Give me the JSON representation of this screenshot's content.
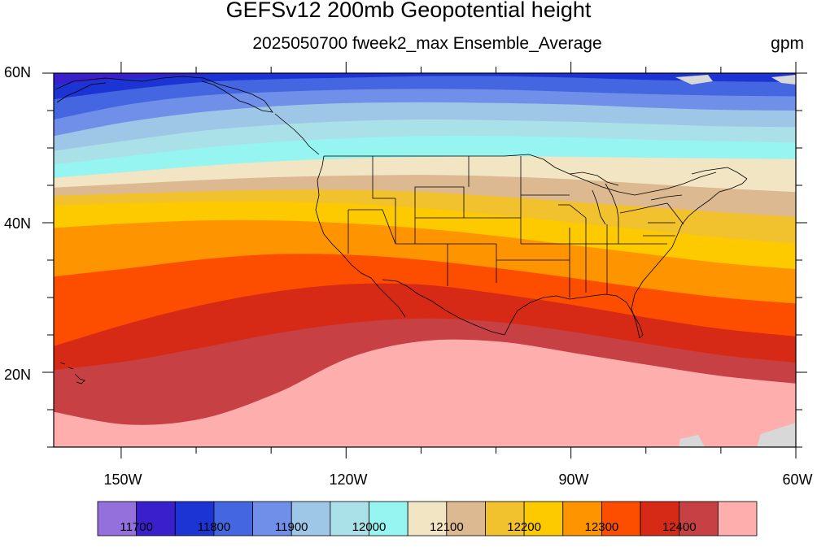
{
  "header": {
    "title": "GEFSv12 200mb Geopotential height",
    "subtitle": "2025050700 fweek2_max Ensemble_Average",
    "units": "gpm"
  },
  "axes": {
    "lat_labels": [
      "60N",
      "40N",
      "20N"
    ],
    "lat_values": [
      60,
      40,
      20
    ],
    "lon_labels": [
      "150W",
      "120W",
      "90W",
      "60W"
    ],
    "lon_values": [
      -150,
      -120,
      -90,
      -60
    ],
    "lat_range": [
      10,
      60
    ],
    "lon_range": [
      -159,
      -60
    ]
  },
  "colorbar": {
    "colors": [
      "#9370db",
      "#3a20cc",
      "#1c34d4",
      "#4466e0",
      "#6f8fe8",
      "#9ec6e6",
      "#aae0e8",
      "#96f5f0",
      "#f2e5c4",
      "#dcb990",
      "#f2c22e",
      "#fdca00",
      "#fe9500",
      "#fd4e00",
      "#d62a17",
      "#c74044",
      "#ffaeae"
    ],
    "labels": [
      "11700",
      "11800",
      "11900",
      "12000",
      "12100",
      "12200",
      "12300",
      "12400"
    ]
  },
  "field": {
    "levels": [
      11700,
      11750,
      11800,
      11850,
      11900,
      11950,
      12000,
      12050,
      12100,
      12150,
      12200,
      12250,
      12300,
      12350,
      12400,
      12450
    ],
    "contours": [
      {
        "level": 11750,
        "lats": [
          58.5,
          59.3,
          59.8,
          60.2,
          60.4,
          60.5,
          60.5,
          60.5,
          60.5,
          60.5,
          60.5
        ]
      },
      {
        "level": 11800,
        "lats": [
          56.5,
          57.8,
          58.8,
          59.2,
          59.4,
          59.6,
          59.6,
          59.4,
          59.1,
          58.9,
          58.8
        ]
      },
      {
        "level": 11850,
        "lats": [
          53.8,
          55.8,
          57.0,
          57.5,
          57.8,
          57.9,
          57.8,
          57.5,
          57.2,
          57.0,
          56.9
        ]
      },
      {
        "level": 11900,
        "lats": [
          51.6,
          53.5,
          54.8,
          55.6,
          56.0,
          56.1,
          56.0,
          55.8,
          55.4,
          55.1,
          55.0
        ]
      },
      {
        "level": 11950,
        "lats": [
          49.6,
          51.0,
          52.3,
          53.1,
          53.6,
          53.8,
          53.7,
          53.5,
          53.2,
          52.9,
          52.8
        ]
      },
      {
        "level": 12000,
        "lats": [
          47.8,
          48.9,
          50.0,
          50.8,
          51.3,
          51.6,
          51.6,
          51.4,
          51.1,
          50.9,
          50.7
        ]
      },
      {
        "level": 12050,
        "lats": [
          46.0,
          46.8,
          47.6,
          48.2,
          48.6,
          48.8,
          48.9,
          48.8,
          48.7,
          48.6,
          48.5
        ]
      },
      {
        "level": 12100,
        "lats": [
          44.7,
          45.2,
          45.7,
          46.1,
          46.3,
          46.4,
          46.2,
          45.8,
          45.2,
          44.6,
          44.1
        ]
      },
      {
        "level": 12150,
        "lats": [
          43.6,
          43.9,
          44.2,
          44.4,
          44.4,
          44.1,
          43.5,
          42.8,
          42.1,
          41.4,
          40.8
        ]
      },
      {
        "level": 12200,
        "lats": [
          42.3,
          42.6,
          42.8,
          42.8,
          42.5,
          41.9,
          41.0,
          40.0,
          39.0,
          38.0,
          37.2
        ]
      },
      {
        "level": 12250,
        "lats": [
          39.3,
          39.9,
          40.3,
          40.3,
          39.9,
          39.2,
          38.2,
          37.0,
          35.8,
          34.6,
          33.8
        ]
      },
      {
        "level": 12300,
        "lats": [
          32.8,
          33.9,
          35.1,
          35.8,
          35.7,
          35.0,
          33.9,
          32.6,
          31.2,
          30.0,
          29.2
        ]
      },
      {
        "level": 12350,
        "lats": [
          23.5,
          26.5,
          29.0,
          30.8,
          31.8,
          31.7,
          30.5,
          29.0,
          27.3,
          25.8,
          24.8
        ]
      },
      {
        "level": 12400,
        "lats": [
          20.3,
          21.5,
          23.3,
          25.2,
          26.6,
          27.2,
          26.7,
          25.4,
          23.8,
          22.3,
          21.3
        ]
      },
      {
        "level": 12450,
        "lats": [
          14.7,
          13.0,
          13.8,
          17.2,
          22.0,
          24.2,
          24.1,
          22.6,
          21.0,
          19.5,
          18.5
        ]
      }
    ]
  }
}
